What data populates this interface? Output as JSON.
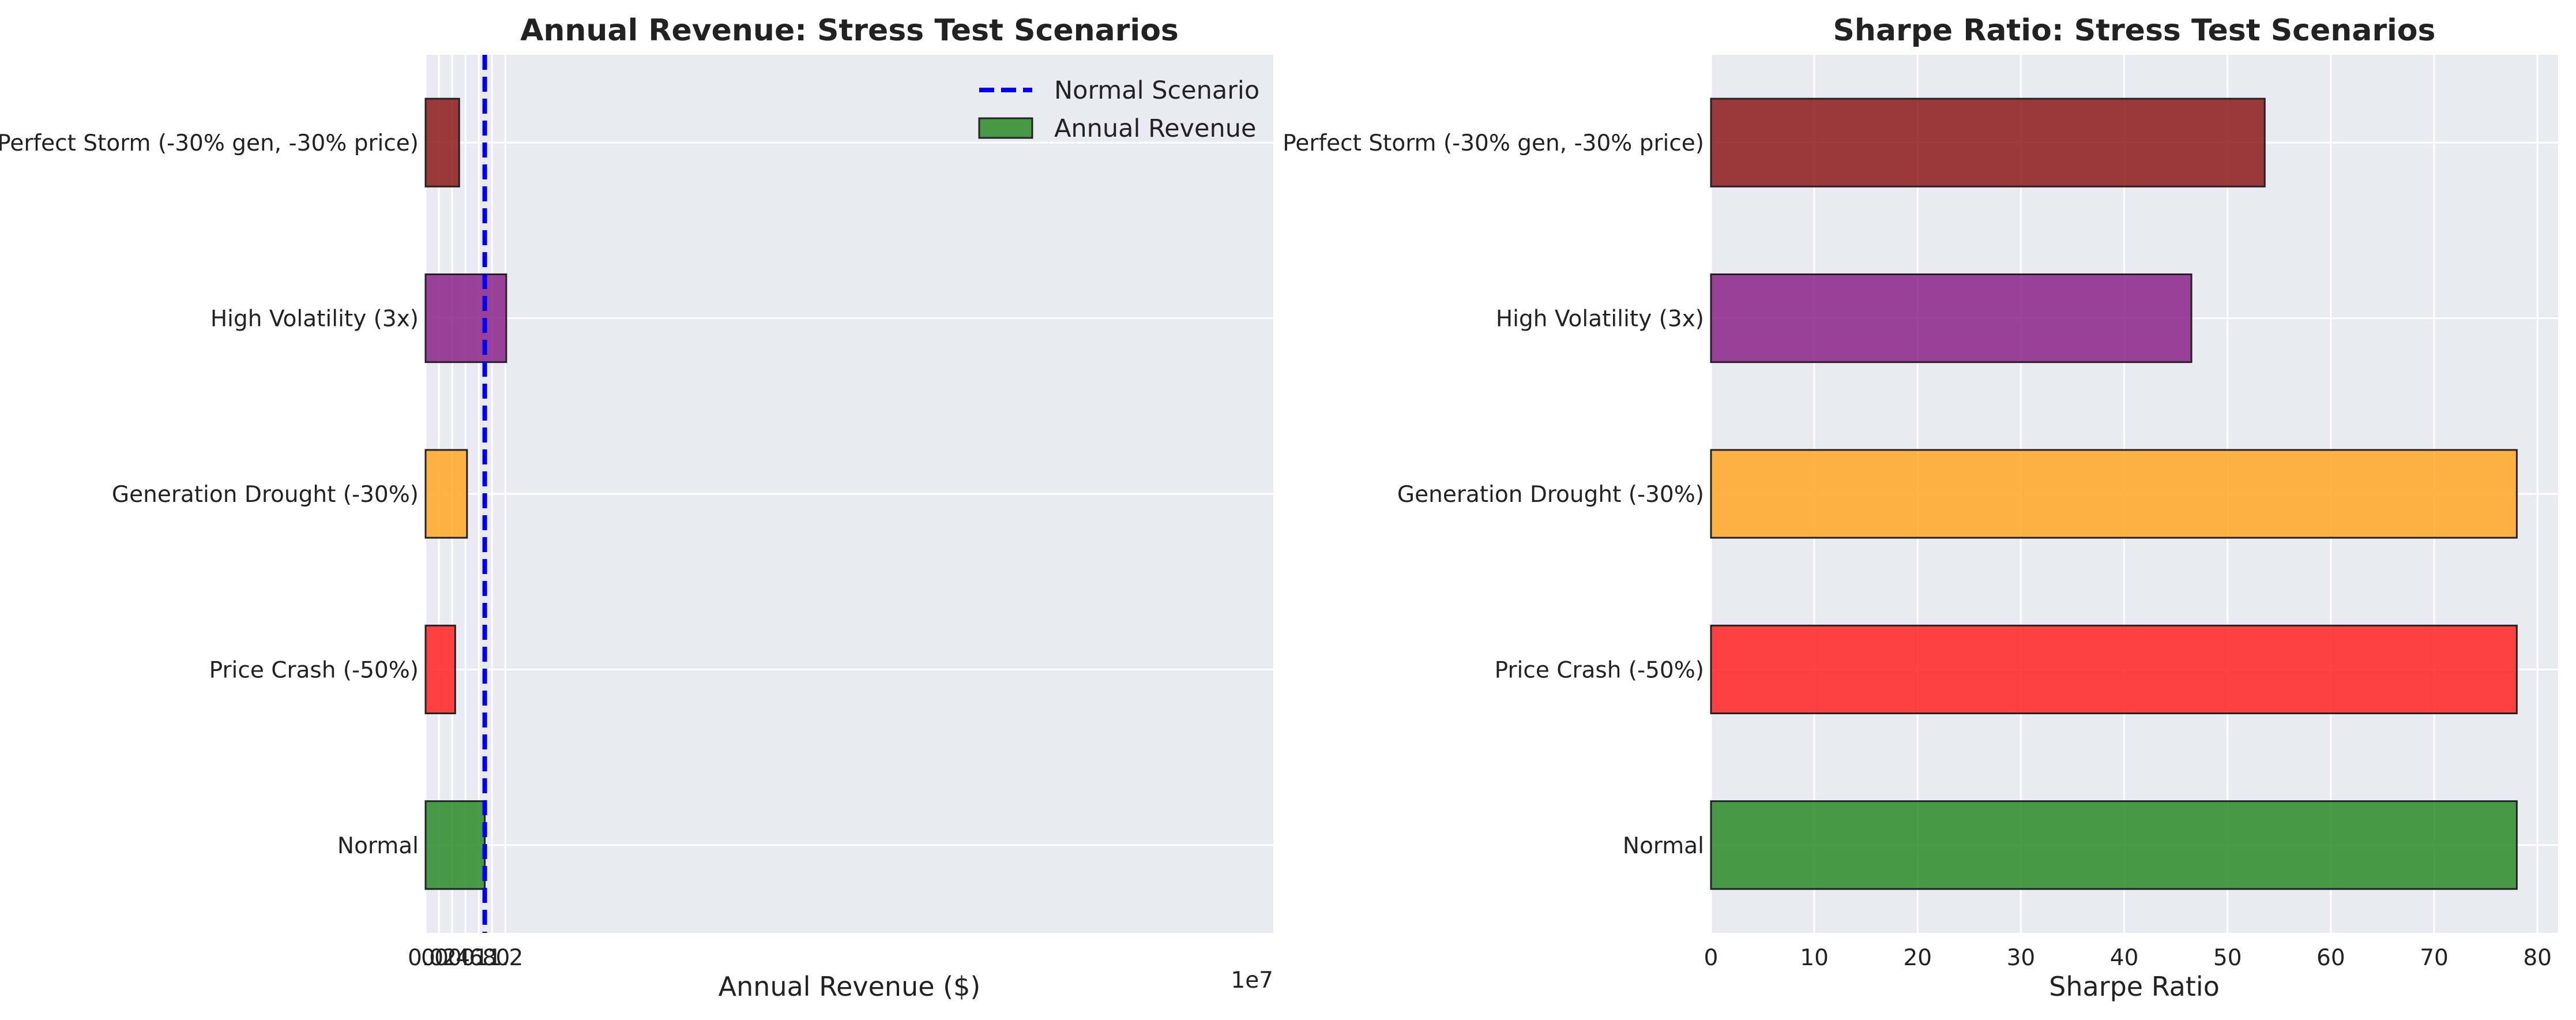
{
  "chart_data": [
    {
      "type": "bar",
      "orientation": "horizontal",
      "title": "Annual Revenue: Stress Test Scenarios",
      "xlabel": "Annual Revenue ($)",
      "ylabel": "",
      "offset_text": "1e7",
      "xlim": [
        0,
        12.75
      ],
      "xticks": [
        0.0,
        0.2,
        0.4,
        0.6,
        0.8,
        1.0,
        1.2
      ],
      "xtick_labels": [
        "0.0",
        "0.2",
        "0.4",
        "0.6",
        "0.8",
        "1.0",
        "1.2"
      ],
      "x_scale_note": "values in units of 1e7 $",
      "categories": [
        "Normal",
        "Price Crash (-50%)",
        "Generation Drought (-30%)",
        "High Volatility (3x)",
        "Perfect Storm (-30% gen, -30% price)"
      ],
      "values": [
        0.89,
        0.445,
        0.623,
        1.213,
        0.505
      ],
      "colors": [
        "#2a8b2a",
        "#ff2222",
        "#ffa722",
        "#8b228b",
        "#8b1a1a"
      ],
      "reference_line": {
        "label": "Normal Scenario",
        "value": 0.89,
        "color": "#0000ee",
        "style": "dashed"
      },
      "legend": {
        "position": "top-right",
        "entries": [
          "Normal Scenario",
          "Annual Revenue"
        ]
      },
      "grid": true
    },
    {
      "type": "bar",
      "orientation": "horizontal",
      "title": "Sharpe Ratio: Stress Test Scenarios",
      "xlabel": "Sharpe Ratio",
      "ylabel": "",
      "xlim": [
        0,
        82
      ],
      "xticks": [
        0,
        10,
        20,
        30,
        40,
        50,
        60,
        70,
        80
      ],
      "xtick_labels": [
        "0",
        "10",
        "20",
        "30",
        "40",
        "50",
        "60",
        "70",
        "80"
      ],
      "categories": [
        "Normal",
        "Price Crash (-50%)",
        "Generation Drought (-30%)",
        "High Volatility (3x)",
        "Perfect Storm (-30% gen, -30% price)"
      ],
      "values": [
        78,
        78,
        78,
        46.5,
        53.6
      ],
      "colors": [
        "#2a8b2a",
        "#ff2222",
        "#ffa722",
        "#8b228b",
        "#8b1a1a"
      ],
      "grid": true
    }
  ],
  "colors": {
    "plot_background": "#eaeaf2",
    "grid": "#ffffff",
    "bar_edge": "#222222"
  }
}
